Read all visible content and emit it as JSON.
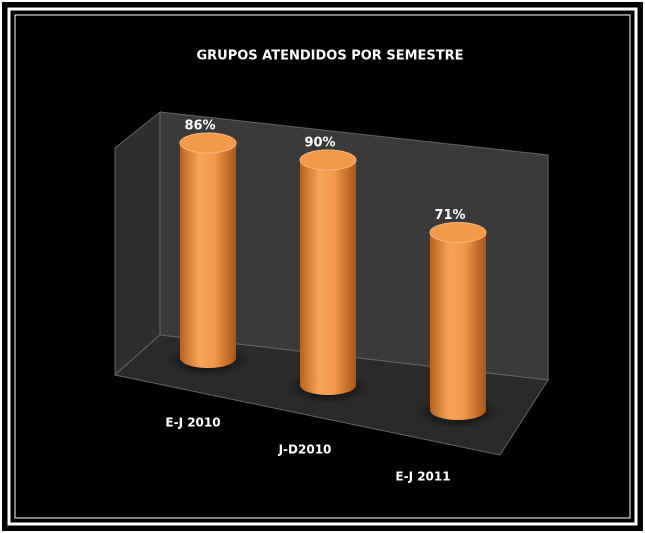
{
  "chart_data": {
    "type": "bar3d",
    "title": "GRUPOS ATENDIDOS POR SEMESTRE",
    "categories": [
      "E-J 2010",
      "J-D2010",
      "E-J 2011"
    ],
    "values": [
      86,
      90,
      71
    ],
    "value_labels": [
      "86%",
      "90%",
      "71%"
    ],
    "color": "#f39a4a"
  }
}
